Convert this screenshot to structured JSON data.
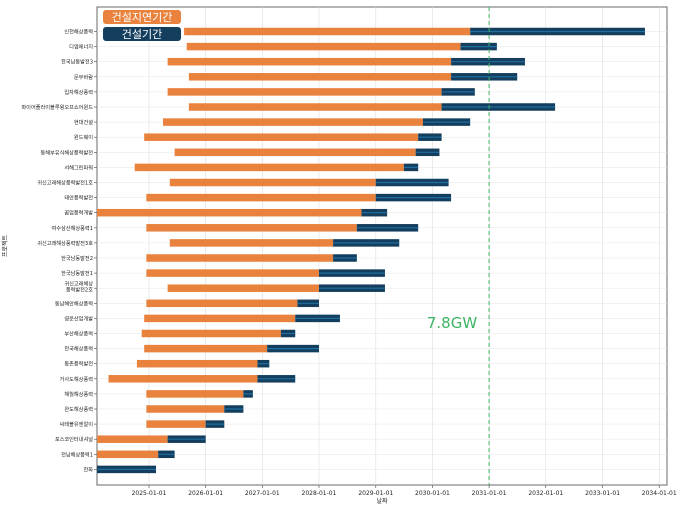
{
  "chart_data": {
    "type": "bar",
    "orientation": "horizontal-gantt",
    "ylabel": "프로젝트",
    "xlabel": "날짜",
    "xticks": [
      "2025-01-01",
      "2026-01-01",
      "2027-01-01",
      "2028-01-01",
      "2029-01-01",
      "2030-01-01",
      "2031-01-01",
      "2032-01-01",
      "2033-01-01",
      "2034-01-01"
    ],
    "xlim": [
      "2024-02-01",
      "2034-02-20"
    ],
    "grid": true,
    "legend_position": "top-left",
    "legend": [
      {
        "label": "건설지연기간",
        "color": "#e8823c"
      },
      {
        "label": "건설기간",
        "color": "#143e5e"
      }
    ],
    "vline": {
      "date": "2031-01-01",
      "label": "7.8GW",
      "color": "#3cb464"
    },
    "colors": {
      "delay": "#e8823c",
      "construction": "#143e5e",
      "construction_stripe": "#1f6fa0"
    },
    "projects": [
      {
        "name": "인천해상풍력",
        "delay_start": "2025-08-15",
        "construction_start": "2030-09-01",
        "end": "2033-10-01"
      },
      {
        "name": "디엠에너지",
        "delay_start": "2025-09-01",
        "construction_start": "2030-07-01",
        "end": "2031-02-20"
      },
      {
        "name": "한국남동발전3",
        "delay_start": "2025-05-01",
        "construction_start": "2030-05-01",
        "end": "2031-08-20"
      },
      {
        "name": "문무바람",
        "delay_start": "2025-09-15",
        "construction_start": "2030-05-01",
        "end": "2031-07-01"
      },
      {
        "name": "입자해상풍력",
        "delay_start": "2025-05-01",
        "construction_start": "2030-03-01",
        "end": "2030-10-01"
      },
      {
        "name": "파이어플라이블루윙오프쇼어윈드",
        "delay_start": "2025-09-15",
        "construction_start": "2030-03-01",
        "end": "2032-03-01"
      },
      {
        "name": "현대건설",
        "delay_start": "2025-04-01",
        "construction_start": "2029-11-01",
        "end": "2030-09-01"
      },
      {
        "name": "윈드웨이",
        "delay_start": "2024-12-01",
        "construction_start": "2029-10-01",
        "end": "2030-03-01"
      },
      {
        "name": "동해부유식해상풍력발전",
        "delay_start": "2025-06-15",
        "construction_start": "2029-09-15",
        "end": "2030-02-15"
      },
      {
        "name": "서해그린파워",
        "delay_start": "2024-10-01",
        "construction_start": "2029-07-01",
        "end": "2029-10-01"
      },
      {
        "name": "귀신고래해상풍력발전1호",
        "delay_start": "2025-05-15",
        "construction_start": "2029-01-01",
        "end": "2030-04-15"
      },
      {
        "name": "태안풍력발전",
        "delay_start": "2024-12-15",
        "construction_start": "2029-01-01",
        "end": "2030-05-01"
      },
      {
        "name": "꿈업풍력개발",
        "delay_start": "2024-02-01",
        "construction_start": "2028-10-01",
        "end": "2029-03-15"
      },
      {
        "name": "여수삼산해상풍력1",
        "delay_start": "2024-12-15",
        "construction_start": "2028-09-01",
        "end": "2029-10-01"
      },
      {
        "name": "귀신고래해상풍력발전3호",
        "delay_start": "2025-05-15",
        "construction_start": "2028-04-01",
        "end": "2029-06-01"
      },
      {
        "name": "한국남동발전2",
        "delay_start": "2024-12-15",
        "construction_start": "2028-04-01",
        "end": "2028-09-01"
      },
      {
        "name": "한국남동발전1",
        "delay_start": "2024-12-15",
        "construction_start": "2028-01-01",
        "end": "2029-03-01"
      },
      {
        "name": "귀신고래해상\n풍력발전2호",
        "delay_start": "2025-05-01",
        "construction_start": "2028-01-01",
        "end": "2029-03-01"
      },
      {
        "name": "동남해안해상풍력",
        "delay_start": "2024-12-15",
        "construction_start": "2027-08-15",
        "end": "2028-01-01"
      },
      {
        "name": "영운산업개발",
        "delay_start": "2024-12-01",
        "construction_start": "2027-08-01",
        "end": "2028-05-15"
      },
      {
        "name": "부산해상풍력",
        "delay_start": "2024-11-15",
        "construction_start": "2027-05-01",
        "end": "2027-08-01"
      },
      {
        "name": "한국해상풍력",
        "delay_start": "2024-12-01",
        "construction_start": "2027-02-01",
        "end": "2028-01-01"
      },
      {
        "name": "동촌풍력발전",
        "delay_start": "2024-10-15",
        "construction_start": "2026-12-01",
        "end": "2027-02-15"
      },
      {
        "name": "거사도해상풍력",
        "delay_start": "2024-04-15",
        "construction_start": "2026-12-01",
        "end": "2027-08-01"
      },
      {
        "name": "해월해상풍력",
        "delay_start": "2024-12-15",
        "construction_start": "2026-09-01",
        "end": "2026-11-01"
      },
      {
        "name": "완도해상풍력",
        "delay_start": "2024-12-15",
        "construction_start": "2026-05-01",
        "end": "2026-09-01"
      },
      {
        "name": "씨테블유엔알이",
        "delay_start": "2024-12-15",
        "construction_start": "2026-01-01",
        "end": "2026-05-01"
      },
      {
        "name": "포스코인터내셔널",
        "delay_start": "2024-02-01",
        "construction_start": "2025-05-01",
        "end": "2026-01-01"
      },
      {
        "name": "전남해상풍력1",
        "delay_start": "2024-02-01",
        "construction_start": "2025-03-01",
        "end": "2025-06-15"
      },
      {
        "name": "한화",
        "delay_start": "2024-02-01",
        "construction_start": "2024-02-01",
        "end": "2025-02-15"
      }
    ]
  }
}
